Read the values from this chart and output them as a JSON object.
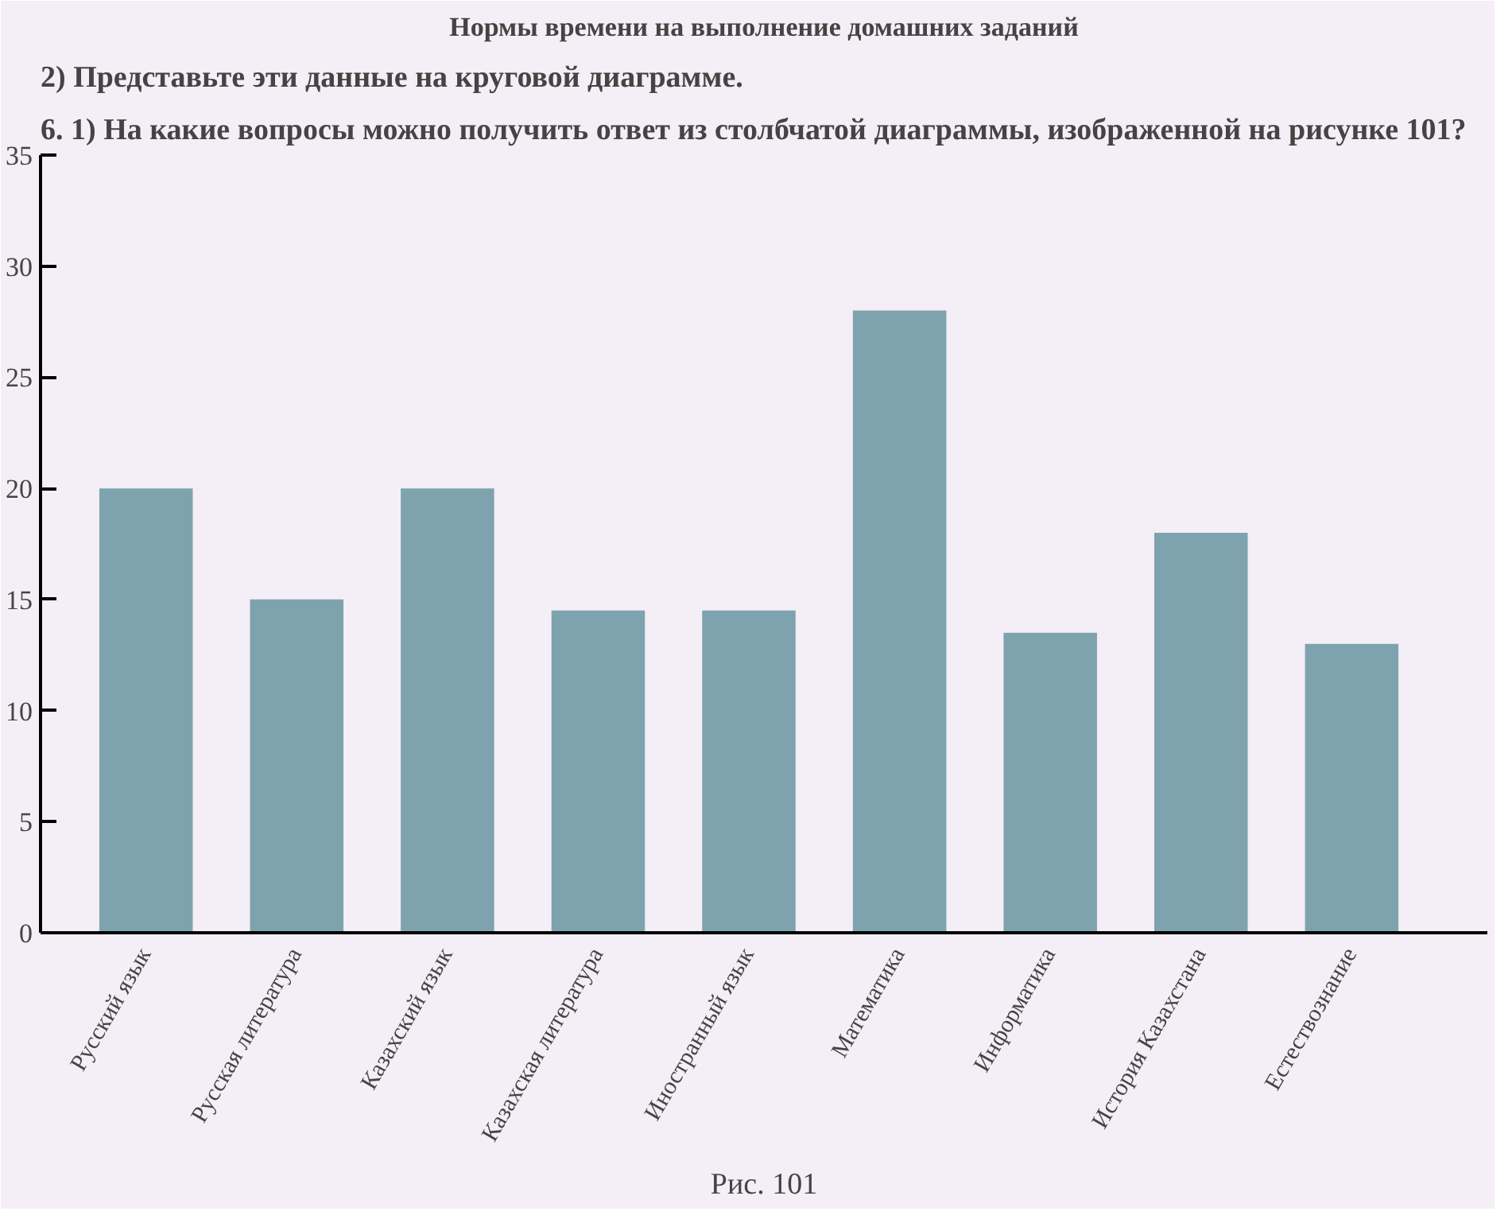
{
  "chart_data": {
    "type": "bar",
    "title": "Нормы времени на выполнение домашних заданий",
    "categories": [
      "Русский язык",
      "Русская литература",
      "Казахский язык",
      "Казахская литература",
      "Иностранный язык",
      "Математика",
      "Информатика",
      "История Казахстана",
      "Естествознание"
    ],
    "values": [
      20,
      15,
      20,
      14.5,
      14.5,
      28,
      13.5,
      18,
      13
    ],
    "color": "#7fa3ae",
    "ylim": [
      0,
      35
    ],
    "yticks": [
      0,
      5,
      10,
      15,
      20,
      25,
      30,
      35
    ],
    "grid": false,
    "annotations": [
      "6. 1) На какие вопросы можно получить ответ из столбчатой диаграммы, изображенной на рисунке 101?",
      "2) Представьте эти данные на круговой диаграмме.",
      "Рис. 101"
    ]
  }
}
